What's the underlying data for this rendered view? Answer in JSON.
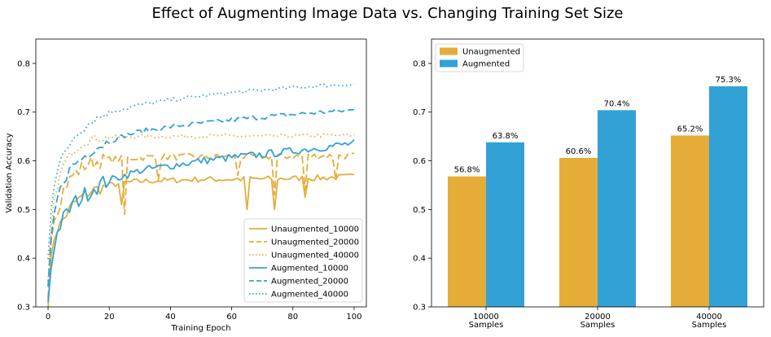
{
  "figure": {
    "title": "Effect of Augmenting Image Data vs. Changing Training Set Size"
  },
  "colors": {
    "unaugmented": "#e5ad38",
    "augmented": "#32a2d6"
  },
  "chart_data": [
    {
      "type": "line",
      "xlabel": "Training Epoch",
      "ylabel": "Validation Accuracy",
      "xlim": [
        -4,
        104
      ],
      "ylim": [
        0.3,
        0.85
      ],
      "xticks": [
        0,
        20,
        40,
        60,
        80,
        100
      ],
      "yticks": [
        0.3,
        0.4,
        0.5,
        0.6,
        0.7,
        0.8
      ],
      "grid": false,
      "legend": "lower-right",
      "series": [
        {
          "name": "Unaugmented_10000",
          "color": "#e5ad38",
          "dash": "solid",
          "anchors": [
            [
              0,
              0.3
            ],
            [
              1,
              0.4
            ],
            [
              2,
              0.44
            ],
            [
              3,
              0.46
            ],
            [
              4,
              0.47
            ],
            [
              5,
              0.48
            ],
            [
              6,
              0.49
            ],
            [
              7,
              0.5
            ],
            [
              8,
              0.51
            ],
            [
              10,
              0.52
            ],
            [
              12,
              0.53
            ],
            [
              15,
              0.54
            ],
            [
              18,
              0.545
            ],
            [
              20,
              0.55
            ],
            [
              22,
              0.552
            ],
            [
              25,
              0.555
            ],
            [
              30,
              0.558
            ],
            [
              40,
              0.56
            ],
            [
              50,
              0.562
            ],
            [
              60,
              0.562
            ],
            [
              70,
              0.563
            ],
            [
              80,
              0.564
            ],
            [
              90,
              0.565
            ],
            [
              100,
              0.568
            ]
          ],
          "dips": [
            [
              24,
              0.51
            ],
            [
              65,
              0.5
            ],
            [
              74,
              0.5
            ],
            [
              84,
              0.525
            ]
          ],
          "noise": 0.006
        },
        {
          "name": "Unaugmented_20000",
          "color": "#e5ad38",
          "dash": "dashed",
          "anchors": [
            [
              0,
              0.32
            ],
            [
              1,
              0.44
            ],
            [
              2,
              0.48
            ],
            [
              3,
              0.5
            ],
            [
              4,
              0.52
            ],
            [
              5,
              0.54
            ],
            [
              6,
              0.55
            ],
            [
              8,
              0.57
            ],
            [
              10,
              0.58
            ],
            [
              12,
              0.59
            ],
            [
              15,
              0.598
            ],
            [
              20,
              0.602
            ],
            [
              25,
              0.605
            ],
            [
              30,
              0.607
            ],
            [
              40,
              0.608
            ],
            [
              50,
              0.608
            ],
            [
              60,
              0.608
            ],
            [
              70,
              0.609
            ],
            [
              80,
              0.609
            ],
            [
              90,
              0.61
            ],
            [
              100,
              0.61
            ]
          ],
          "dips": [
            [
              25,
              0.49
            ],
            [
              36,
              0.56
            ],
            [
              62,
              0.57
            ],
            [
              74,
              0.53
            ],
            [
              84,
              0.54
            ],
            [
              94,
              0.56
            ]
          ],
          "noise": 0.007
        },
        {
          "name": "Unaugmented_40000",
          "color": "#e5ad38",
          "dash": "dotted",
          "anchors": [
            [
              0,
              0.35
            ],
            [
              1,
              0.46
            ],
            [
              2,
              0.52
            ],
            [
              3,
              0.55
            ],
            [
              4,
              0.57
            ],
            [
              5,
              0.59
            ],
            [
              6,
              0.6
            ],
            [
              8,
              0.62
            ],
            [
              10,
              0.63
            ],
            [
              12,
              0.64
            ],
            [
              15,
              0.645
            ],
            [
              20,
              0.648
            ],
            [
              30,
              0.65
            ],
            [
              40,
              0.65
            ],
            [
              50,
              0.651
            ],
            [
              60,
              0.651
            ],
            [
              70,
              0.65
            ],
            [
              80,
              0.651
            ],
            [
              90,
              0.652
            ],
            [
              100,
              0.652
            ]
          ],
          "dips": [],
          "noise": 0.004
        },
        {
          "name": "Augmented_10000",
          "color": "#32a2d6",
          "dash": "solid",
          "anchors": [
            [
              0,
              0.31
            ],
            [
              1,
              0.38
            ],
            [
              2,
              0.42
            ],
            [
              3,
              0.45
            ],
            [
              4,
              0.47
            ],
            [
              5,
              0.48
            ],
            [
              6,
              0.49
            ],
            [
              8,
              0.51
            ],
            [
              10,
              0.52
            ],
            [
              15,
              0.545
            ],
            [
              20,
              0.56
            ],
            [
              25,
              0.57
            ],
            [
              30,
              0.58
            ],
            [
              40,
              0.59
            ],
            [
              50,
              0.6
            ],
            [
              60,
              0.607
            ],
            [
              70,
              0.613
            ],
            [
              80,
              0.62
            ],
            [
              90,
              0.628
            ],
            [
              100,
              0.636
            ]
          ],
          "dips": [],
          "noise": 0.008
        },
        {
          "name": "Augmented_20000",
          "color": "#32a2d6",
          "dash": "dashed",
          "anchors": [
            [
              0,
              0.34
            ],
            [
              1,
              0.44
            ],
            [
              2,
              0.49
            ],
            [
              3,
              0.52
            ],
            [
              4,
              0.54
            ],
            [
              5,
              0.56
            ],
            [
              6,
              0.57
            ],
            [
              8,
              0.59
            ],
            [
              10,
              0.6
            ],
            [
              15,
              0.625
            ],
            [
              20,
              0.64
            ],
            [
              25,
              0.652
            ],
            [
              30,
              0.66
            ],
            [
              40,
              0.67
            ],
            [
              50,
              0.677
            ],
            [
              60,
              0.684
            ],
            [
              70,
              0.69
            ],
            [
              80,
              0.695
            ],
            [
              90,
              0.7
            ],
            [
              100,
              0.704
            ]
          ],
          "dips": [],
          "noise": 0.005
        },
        {
          "name": "Augmented_40000",
          "color": "#32a2d6",
          "dash": "dotted",
          "anchors": [
            [
              0,
              0.4
            ],
            [
              1,
              0.5
            ],
            [
              2,
              0.55
            ],
            [
              3,
              0.58
            ],
            [
              4,
              0.6
            ],
            [
              5,
              0.61
            ],
            [
              6,
              0.62
            ],
            [
              8,
              0.645
            ],
            [
              10,
              0.66
            ],
            [
              15,
              0.685
            ],
            [
              20,
              0.7
            ],
            [
              25,
              0.707
            ],
            [
              30,
              0.715
            ],
            [
              40,
              0.725
            ],
            [
              50,
              0.733
            ],
            [
              60,
              0.74
            ],
            [
              70,
              0.745
            ],
            [
              80,
              0.75
            ],
            [
              90,
              0.755
            ],
            [
              100,
              0.757
            ]
          ],
          "dips": [],
          "noise": 0.004
        }
      ]
    },
    {
      "type": "bar",
      "categories": [
        "10000\nSamples",
        "20000\nSamples",
        "40000\nSamples"
      ],
      "ylim": [
        0.3,
        0.85
      ],
      "yticks": [
        0.3,
        0.4,
        0.5,
        0.6,
        0.7,
        0.8
      ],
      "grid": false,
      "legend": "top-left",
      "series": [
        {
          "name": "Unaugmented",
          "color": "#e5ad38",
          "values": [
            0.568,
            0.606,
            0.652
          ],
          "labels": [
            "56.8%",
            "60.6%",
            "65.2%"
          ]
        },
        {
          "name": "Augmented",
          "color": "#32a2d6",
          "values": [
            0.638,
            0.704,
            0.753
          ],
          "labels": [
            "63.8%",
            "70.4%",
            "75.3%"
          ]
        }
      ]
    }
  ]
}
